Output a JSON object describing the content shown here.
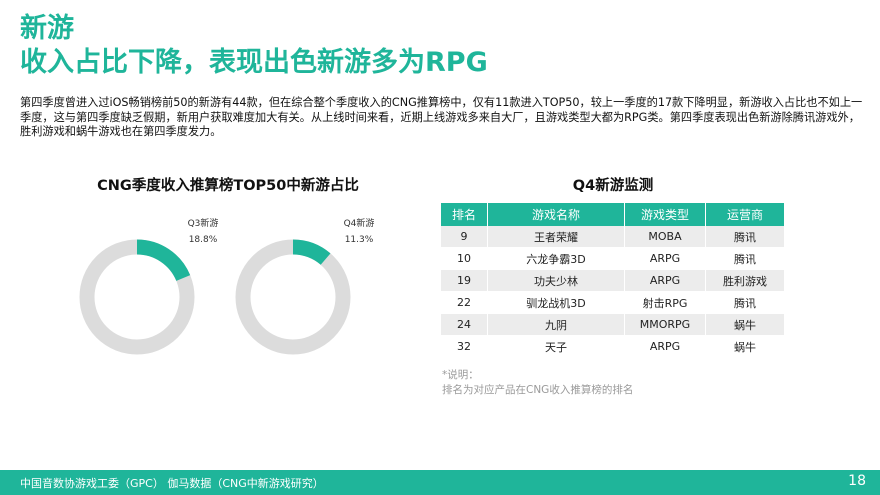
{
  "title": {
    "line1": "新游",
    "line2": "收入占比下降，表现出色新游多为RPG"
  },
  "paragraph": "第四季度曾进入过iOS畅销榜前50的新游有44款，但在综合整个季度收入的CNG推算榜中，仅有11款进入TOP50，较上一季度的17款下降明显，新游收入占比也不如上一季度，这与第四季度缺乏假期，新用户获取难度加大有关。从上线时间来看，近期上线游戏多来自大厂，且游戏类型大都为RPG类。第四季度表现出色新游除腾讯游戏外，胜利游戏和蜗牛游戏也在第四季度发力。",
  "chart_data": {
    "type": "pie",
    "title": "CNG季度收入推算榜TOP50中新游占比",
    "charts": [
      {
        "label": "Q3新游",
        "value_label": "18.8%",
        "value": 18.8
      },
      {
        "label": "Q4新游",
        "value_label": "11.3%",
        "value": 11.3
      }
    ],
    "colors": {
      "highlight": "#1fb59a",
      "rest": "#dcdcdc"
    }
  },
  "table": {
    "title": "Q4新游监测",
    "headers": [
      "排名",
      "游戏名称",
      "游戏类型",
      "运营商"
    ],
    "rows": [
      [
        "9",
        "王者荣耀",
        "MOBA",
        "腾讯"
      ],
      [
        "10",
        "六龙争霸3D",
        "ARPG",
        "腾讯"
      ],
      [
        "19",
        "功夫少林",
        "ARPG",
        "胜利游戏"
      ],
      [
        "22",
        "驯龙战机3D",
        "射击RPG",
        "腾讯"
      ],
      [
        "24",
        "九阴",
        "MMORPG",
        "蜗牛"
      ],
      [
        "32",
        "天子",
        "ARPG",
        "蜗牛"
      ]
    ],
    "note_label": "*说明：",
    "note_text": "排名为对应产品在CNG收入推算榜的排名"
  },
  "footer": {
    "source": "中国音数协游戏工委（GPC）    伽马数据（CNG中新游戏研究）",
    "page_number": "18"
  },
  "colors": {
    "accent": "#1fb59a",
    "ring_gray": "#dcdcdc"
  }
}
